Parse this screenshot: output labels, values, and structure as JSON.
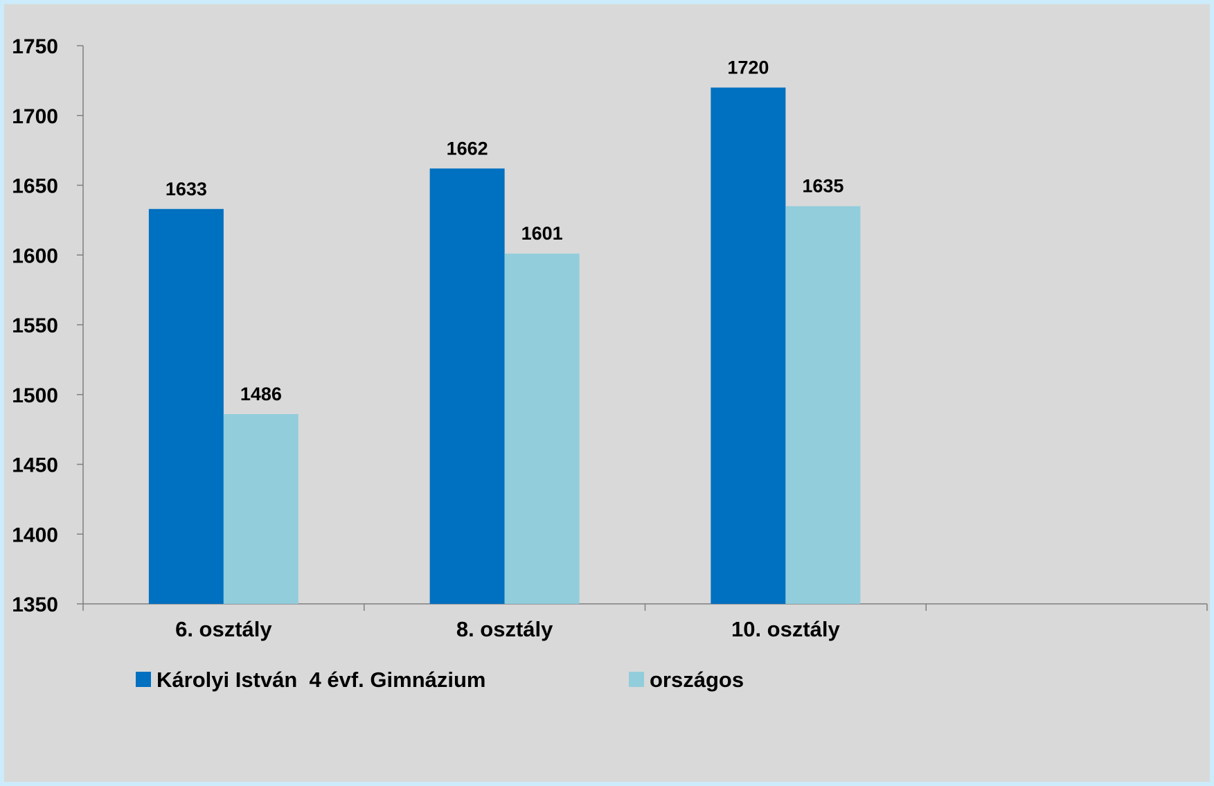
{
  "chart_data": {
    "type": "bar",
    "title": "",
    "xlabel": "",
    "ylabel": "",
    "categories": [
      "6. osztály",
      "8. osztály",
      "10. osztály",
      ""
    ],
    "series": [
      {
        "name": "Károlyi István  4 évf. Gimnázium",
        "values": [
          1633,
          1662,
          1720,
          null
        ],
        "color": "#0070c0"
      },
      {
        "name": "országos",
        "values": [
          1486,
          1601,
          1635,
          null
        ],
        "color": "#92cddc"
      }
    ],
    "ylim": [
      1350,
      1750
    ],
    "yticks": [
      1350,
      1400,
      1450,
      1500,
      1550,
      1600,
      1650,
      1700,
      1750
    ],
    "grid": false,
    "legend": "bottom-left",
    "background": "#d9d9d9",
    "frame_color": "#ccecfb"
  }
}
